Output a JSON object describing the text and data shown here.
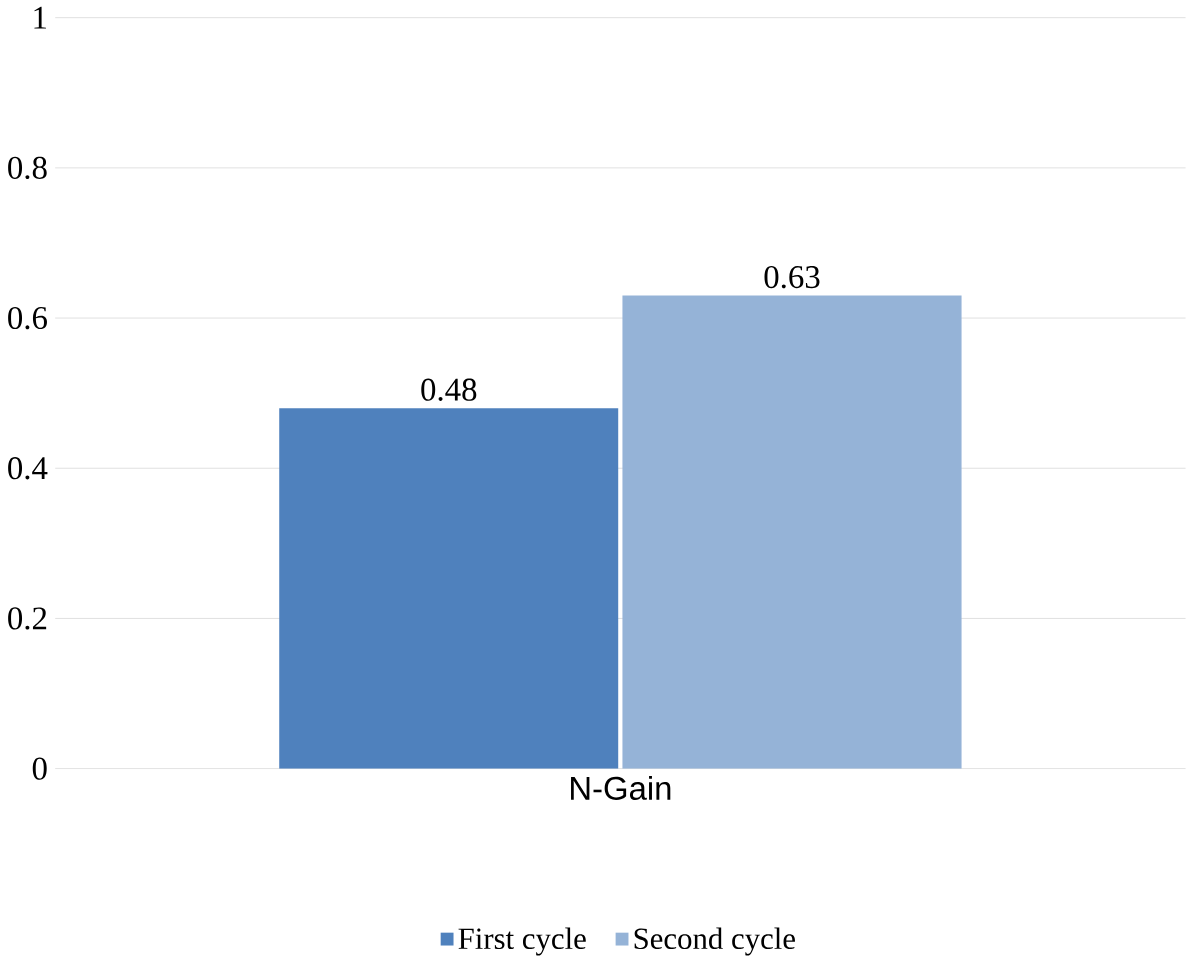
{
  "chart_data": {
    "type": "bar",
    "categories": [
      "N-Gain"
    ],
    "series": [
      {
        "name": "First cycle",
        "color": "#4f81bd",
        "values": [
          0.48
        ]
      },
      {
        "name": "Second cycle",
        "color": "#95b3d7",
        "values": [
          0.63
        ]
      }
    ],
    "ylim": [
      0,
      1
    ],
    "yticks": [
      0,
      0.2,
      0.4,
      0.6,
      0.8,
      1
    ],
    "grid": "y",
    "legend": "bottom",
    "data_labels": true
  }
}
